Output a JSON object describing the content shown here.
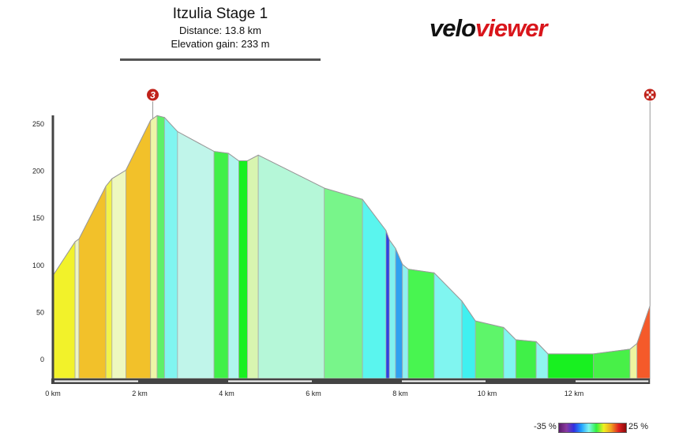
{
  "header": {
    "title": "Itzulia Stage 1",
    "distance": "Distance: 13.8 km",
    "elevation_gain": "Elevation gain: 233 m"
  },
  "logo": {
    "part1": "velo",
    "part2": "viewer",
    "brand_color": "#d9151b"
  },
  "legend": {
    "min_label": "-35 %",
    "max_label": "25 %",
    "colors": [
      "#5a1a6a",
      "#8a3aa0",
      "#3030e0",
      "#20a0ff",
      "#80f5f0",
      "#30f040",
      "#f0f020",
      "#f0a020",
      "#e02020",
      "#8a0a0a"
    ]
  },
  "chart_data": {
    "type": "area",
    "title": "",
    "xlabel": "",
    "ylabel": "",
    "xlim": [
      0,
      13.8
    ],
    "ylim": [
      -20,
      260
    ],
    "x_ticks": [
      {
        "v": 0,
        "label": "0 km"
      },
      {
        "v": 2,
        "label": "2 km"
      },
      {
        "v": 4,
        "label": "4 km"
      },
      {
        "v": 6,
        "label": "6 km"
      },
      {
        "v": 8,
        "label": "8 km"
      },
      {
        "v": 10,
        "label": "10 km"
      },
      {
        "v": 12,
        "label": "12 km"
      }
    ],
    "y_ticks": [
      0,
      50,
      100,
      150,
      200,
      250
    ],
    "points_km": [
      0,
      0.51,
      0.6,
      1.22,
      1.36,
      1.68,
      2.25,
      2.4,
      2.57,
      2.87,
      3.71,
      4.04,
      4.28,
      4.48,
      4.73,
      6.25,
      7.13,
      7.67,
      7.75,
      7.89,
      8.05,
      8.18,
      8.78,
      9.42,
      9.73,
      10.38,
      10.66,
      11.13,
      11.4,
      12.45,
      13.29,
      13.45,
      13.75
    ],
    "points_elev_m": [
      89,
      125,
      128,
      184,
      192,
      201,
      254,
      259,
      257,
      242,
      221,
      219,
      211,
      211,
      217,
      182,
      170,
      137,
      127,
      118,
      101,
      96,
      92,
      62,
      41,
      34,
      21,
      19,
      6,
      6,
      11,
      17,
      57
    ],
    "segment_colors": [
      "#f2f22a",
      "#eef5c0",
      "#f2c12a",
      "#f2f24a",
      "#eef8c0",
      "#f2c12a",
      "#eef5a8",
      "#5ef06a",
      "#80f5f0",
      "#c0f5ea",
      "#40f048",
      "#b0f5ee",
      "#18f020",
      "#d8f5b0",
      "#b5f7d8",
      "#78f58a",
      "#5af5ee",
      "#3040e0",
      "#80f0f0",
      "#30a0f0",
      "#90f0f0",
      "#48f550",
      "#80f5f0",
      "#40f0f0",
      "#5ef56a",
      "#80f5f0",
      "#40f048",
      "#90f5f0",
      "#18f020",
      "#48f048",
      "#eef5a0",
      "#f55a2a"
    ],
    "markers": [
      {
        "type": "climb",
        "label": "3",
        "km": 2.3,
        "color": "#c0221a"
      },
      {
        "type": "finish",
        "label": "",
        "km": 13.75,
        "color": "#c0221a"
      }
    ]
  }
}
